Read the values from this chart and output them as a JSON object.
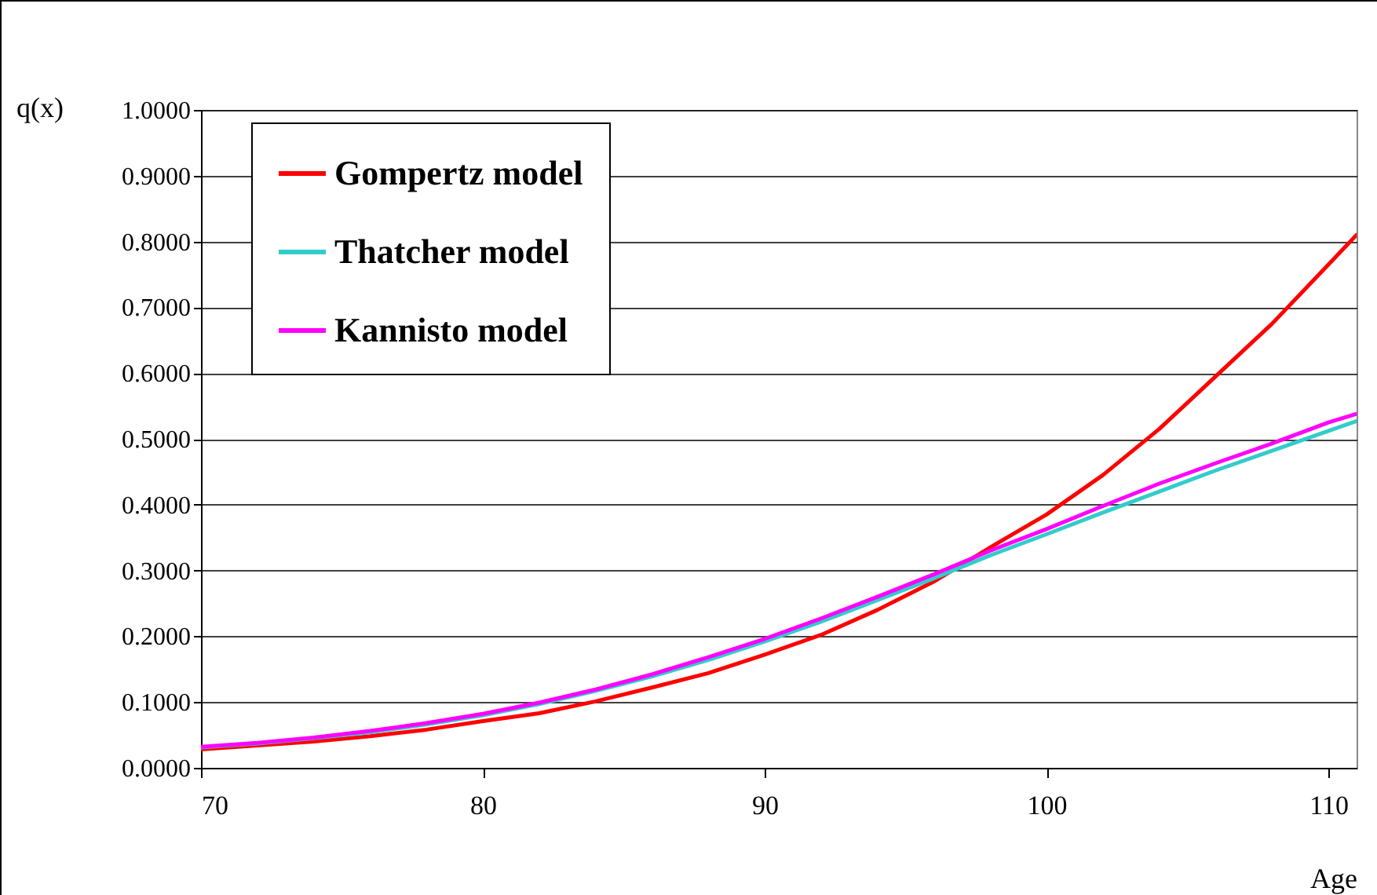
{
  "chart_data": {
    "type": "line",
    "xlabel": "Age",
    "ylabel": "q(x)",
    "x": [
      70,
      72,
      74,
      76,
      78,
      80,
      82,
      84,
      86,
      88,
      90,
      92,
      94,
      96,
      98,
      100,
      102,
      104,
      106,
      108,
      110,
      111
    ],
    "series": [
      {
        "name": "Gompertz model",
        "color": "#ff0000",
        "values": [
          0.028,
          0.034,
          0.04,
          0.048,
          0.058,
          0.071,
          0.083,
          0.101,
          0.122,
          0.144,
          0.172,
          0.202,
          0.24,
          0.283,
          0.335,
          0.385,
          0.445,
          0.515,
          0.595,
          0.675,
          0.765,
          0.81
        ]
      },
      {
        "name": "Thatcher model",
        "color": "#33cccc",
        "values": [
          0.031,
          0.037,
          0.045,
          0.054,
          0.066,
          0.08,
          0.097,
          0.117,
          0.139,
          0.164,
          0.192,
          0.222,
          0.255,
          0.288,
          0.323,
          0.355,
          0.388,
          0.42,
          0.452,
          0.482,
          0.512,
          0.527
        ]
      },
      {
        "name": "Kannisto model",
        "color": "#ff00ff",
        "values": [
          0.032,
          0.038,
          0.046,
          0.056,
          0.068,
          0.082,
          0.099,
          0.119,
          0.142,
          0.168,
          0.196,
          0.227,
          0.26,
          0.294,
          0.33,
          0.363,
          0.398,
          0.432,
          0.463,
          0.493,
          0.525,
          0.538
        ]
      }
    ],
    "xlim": [
      70,
      111
    ],
    "xticks": [
      70,
      80,
      90,
      100,
      110
    ],
    "ylim": [
      0,
      1
    ],
    "yticks": [
      {
        "value": 0,
        "label": "0.0000"
      },
      {
        "value": 0.1,
        "label": "0.1000"
      },
      {
        "value": 0.2,
        "label": "0.2000"
      },
      {
        "value": 0.3,
        "label": "0.3000"
      },
      {
        "value": 0.4,
        "label": "0.4000"
      },
      {
        "value": 0.5,
        "label": "0.5000"
      },
      {
        "value": 0.6,
        "label": "0.6000"
      },
      {
        "value": 0.7,
        "label": "0.7000"
      },
      {
        "value": 0.8,
        "label": "0.8000"
      },
      {
        "value": 0.9,
        "label": "0.9000"
      },
      {
        "value": 1,
        "label": "1.0000"
      }
    ],
    "grid": "y",
    "legend": "top left",
    "marker": "none",
    "line_style": "solid"
  }
}
